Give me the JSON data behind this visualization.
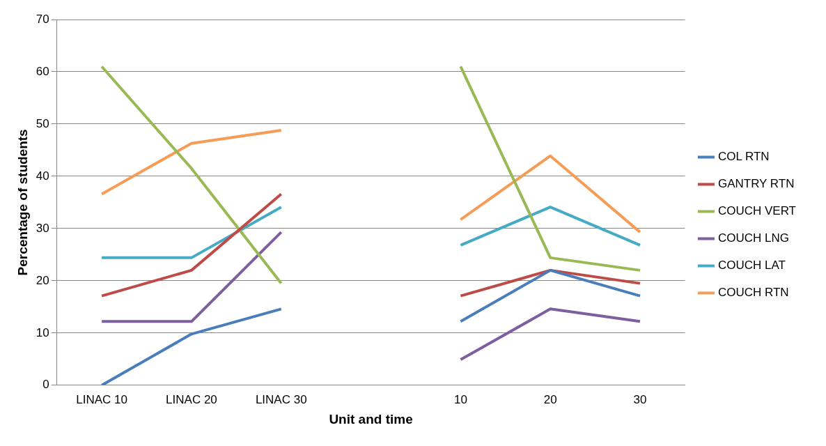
{
  "chart_data": {
    "type": "line",
    "xlabel": "Unit and time",
    "ylabel": "Percentage of students",
    "categories": [
      "LINAC 10",
      "LINAC 20",
      "LINAC 30",
      null,
      "10",
      "20",
      "30"
    ],
    "series": [
      {
        "name": "COL RTN",
        "color": "#4a7ebb",
        "values": [
          0,
          9.8,
          14.6,
          null,
          12.2,
          22,
          17.1
        ]
      },
      {
        "name": "GANTRY RTN",
        "color": "#be4b48",
        "values": [
          17.1,
          22,
          36.6,
          null,
          17.1,
          22,
          19.5
        ]
      },
      {
        "name": "COUCH VERT",
        "color": "#98b954",
        "values": [
          61,
          41.5,
          19.5,
          null,
          61,
          24.4,
          22
        ]
      },
      {
        "name": "COUCH LNG",
        "color": "#7d5fa0",
        "values": [
          12.2,
          12.2,
          29.3,
          null,
          4.9,
          14.6,
          12.2
        ]
      },
      {
        "name": "COUCH LAT",
        "color": "#46aac5",
        "values": [
          24.4,
          24.4,
          34.1,
          null,
          26.8,
          34.1,
          26.8
        ]
      },
      {
        "name": "COUCH RTN",
        "color": "#f59d56",
        "values": [
          36.6,
          46.3,
          48.8,
          null,
          31.7,
          43.9,
          29.3
        ]
      }
    ],
    "ylim": [
      0,
      70
    ],
    "yticks": [
      0,
      10,
      20,
      30,
      40,
      50,
      60,
      70
    ],
    "grid": "y",
    "legend": "right",
    "marker": "none",
    "line_style": "solid"
  }
}
